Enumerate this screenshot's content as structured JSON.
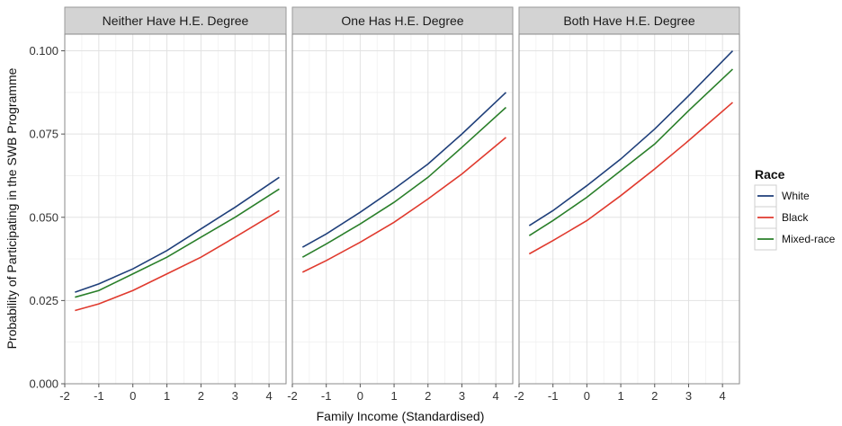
{
  "chart_data": {
    "type": "line",
    "xlabel": "Family Income (Standardised)",
    "ylabel": "Probability of Participating in the SWB Programme",
    "xlim": [
      -2,
      4.5
    ],
    "ylim": [
      0,
      0.105
    ],
    "x_ticks": [
      -2,
      -1,
      0,
      1,
      2,
      3,
      4
    ],
    "x_tick_labels": [
      "-2",
      "-1",
      "0",
      "1",
      "2",
      "3",
      "4"
    ],
    "y_ticks": [
      0,
      0.025,
      0.05,
      0.075,
      0.1
    ],
    "y_tick_labels": [
      "0.000",
      "0.025",
      "0.050",
      "0.075",
      "0.100"
    ],
    "grid": true,
    "legend": {
      "title": "Race",
      "position": "right",
      "entries": [
        "White",
        "Black",
        "Mixed-race"
      ]
    },
    "colors": {
      "White": "#1f3f7a",
      "Black": "#e03a2e",
      "Mixed-race": "#2a7f2a"
    },
    "facets": [
      {
        "title": "Neither Have H.E. Degree",
        "series": [
          {
            "name": "White",
            "x": [
              -1.7,
              -1,
              0,
              1,
              2,
              3,
              4.3
            ],
            "y": [
              0.0275,
              0.03,
              0.0345,
              0.04,
              0.0465,
              0.053,
              0.062
            ]
          },
          {
            "name": "Black",
            "x": [
              -1.7,
              -1,
              0,
              1,
              2,
              3,
              4.3
            ],
            "y": [
              0.022,
              0.024,
              0.028,
              0.033,
              0.038,
              0.044,
              0.052
            ]
          },
          {
            "name": "Mixed-race",
            "x": [
              -1.7,
              -1,
              0,
              1,
              2,
              3,
              4.3
            ],
            "y": [
              0.026,
              0.028,
              0.033,
              0.038,
              0.044,
              0.05,
              0.0585
            ]
          }
        ]
      },
      {
        "title": "One Has H.E. Degree",
        "series": [
          {
            "name": "White",
            "x": [
              -1.7,
              -1,
              0,
              1,
              2,
              3,
              4.3
            ],
            "y": [
              0.041,
              0.045,
              0.0515,
              0.0585,
              0.066,
              0.075,
              0.0875
            ]
          },
          {
            "name": "Black",
            "x": [
              -1.7,
              -1,
              0,
              1,
              2,
              3,
              4.3
            ],
            "y": [
              0.0335,
              0.037,
              0.0425,
              0.0485,
              0.0555,
              0.063,
              0.074
            ]
          },
          {
            "name": "Mixed-race",
            "x": [
              -1.7,
              -1,
              0,
              1,
              2,
              3,
              4.3
            ],
            "y": [
              0.038,
              0.042,
              0.048,
              0.0545,
              0.062,
              0.071,
              0.083
            ]
          }
        ]
      },
      {
        "title": "Both Have H.E. Degree",
        "series": [
          {
            "name": "White",
            "x": [
              -1.7,
              -1,
              0,
              1,
              2,
              3,
              4.3
            ],
            "y": [
              0.0475,
              0.052,
              0.0595,
              0.0675,
              0.0765,
              0.0865,
              0.1
            ]
          },
          {
            "name": "Black",
            "x": [
              -1.7,
              -1,
              0,
              1,
              2,
              3,
              4.3
            ],
            "y": [
              0.039,
              0.043,
              0.049,
              0.0565,
              0.0645,
              0.073,
              0.0845
            ]
          },
          {
            "name": "Mixed-race",
            "x": [
              -1.7,
              -1,
              0,
              1,
              2,
              3,
              4.3
            ],
            "y": [
              0.0445,
              0.049,
              0.056,
              0.064,
              0.072,
              0.082,
              0.0945
            ]
          }
        ]
      }
    ]
  }
}
